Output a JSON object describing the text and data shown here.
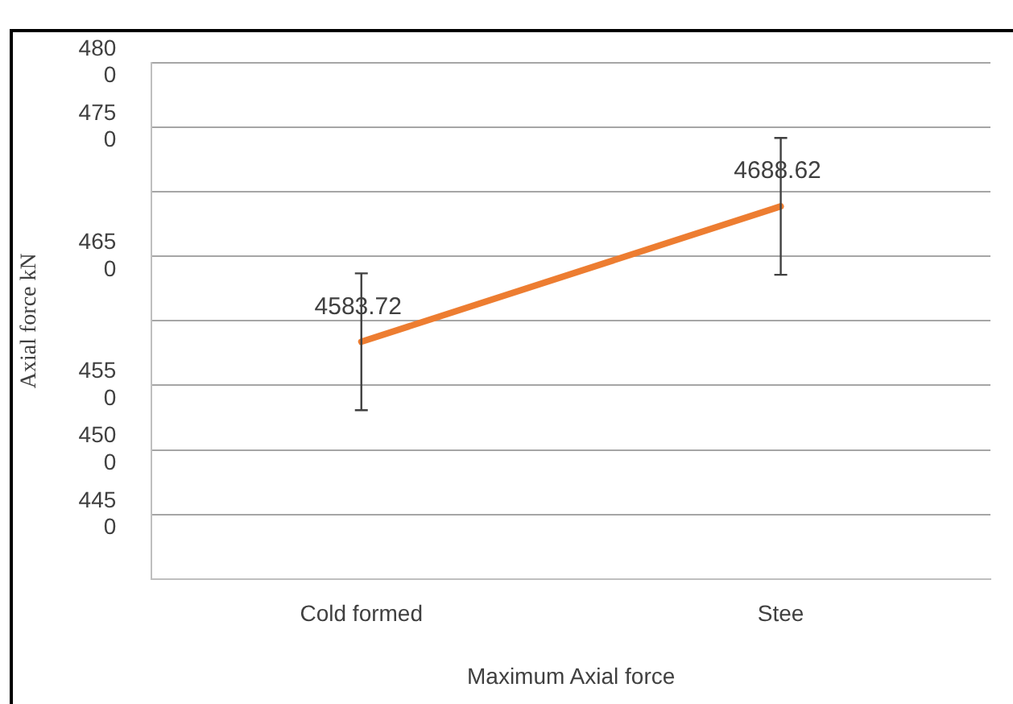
{
  "chart_data": {
    "type": "line",
    "xlabel": "Maximum Axial force",
    "ylabel": "Axial force kN",
    "categories": [
      "Cold formed",
      "Stee"
    ],
    "series": [
      {
        "color": "#ed7d31",
        "values": [
          4583.72,
          4688.62
        ],
        "errors": [
          53,
          53
        ]
      }
    ],
    "ylim": [
      4400,
      4800
    ],
    "yticks": [
      {
        "value": 4400,
        "label": null
      },
      4450,
      4500,
      4550,
      {
        "value": 4600,
        "label": null
      },
      4650,
      {
        "value": 4700,
        "label": null
      },
      4750,
      4800
    ],
    "grid": "y",
    "legend": false,
    "marker": "none",
    "line_style": "solid",
    "data_labels": true
  }
}
